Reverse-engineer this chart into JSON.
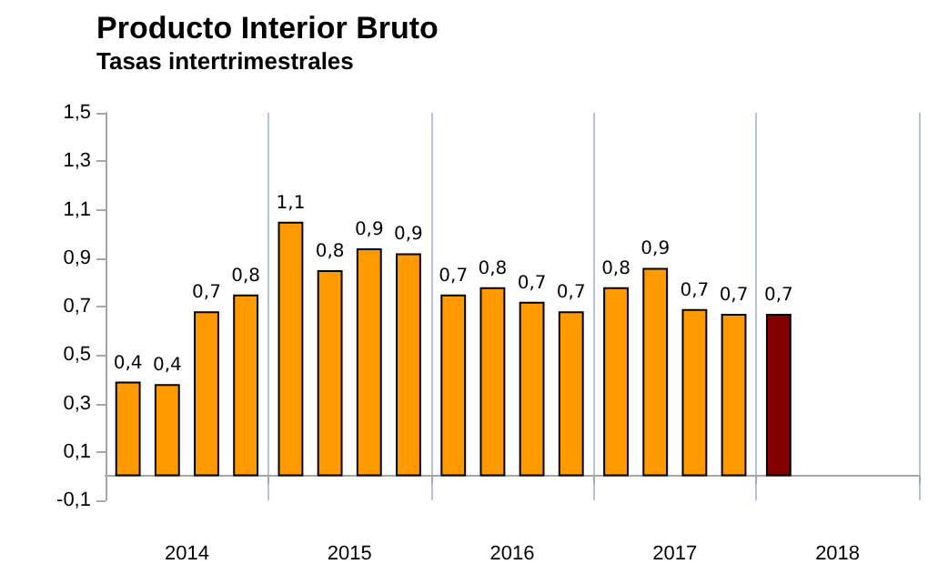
{
  "chart_data": {
    "type": "bar",
    "title": "Producto Interior Bruto",
    "subtitle": "Tasas intertrimestrales",
    "categories": [
      "2014",
      "2015",
      "2016",
      "2017",
      "2018"
    ],
    "series": [
      {
        "colors": [
          "#ff9900",
          "#ff9900",
          "#ff9900",
          "#ff9900",
          "#800000"
        ],
        "values": [
          0.39,
          1.05,
          0.75,
          0.78,
          0.67
        ],
        "value_labels": [
          "0,4",
          "1,1",
          "0,7",
          "0,8",
          "0,7"
        ]
      },
      {
        "color": "#ff9900",
        "values": [
          0.38,
          0.85,
          0.78,
          0.86,
          null
        ],
        "value_labels": [
          "0,4",
          "0,8",
          "0,8",
          "0,9",
          null
        ]
      },
      {
        "color": "#ff9900",
        "values": [
          0.68,
          0.94,
          0.72,
          0.69,
          null
        ],
        "value_labels": [
          "0,7",
          "0,9",
          "0,7",
          "0,7",
          null
        ]
      },
      {
        "color": "#ff9900",
        "values": [
          0.75,
          0.92,
          0.68,
          0.67,
          null
        ],
        "value_labels": [
          "0,8",
          "0,9",
          "0,7",
          "0,7",
          null
        ]
      }
    ],
    "ylim": [
      -0.1,
      1.5
    ],
    "yticks": [
      {
        "value": -0.1,
        "label": "-0,1"
      },
      {
        "value": 0.1,
        "label": "0,1"
      },
      {
        "value": 0.3,
        "label": "0,3"
      },
      {
        "value": 0.5,
        "label": "0,5"
      },
      {
        "value": 0.7,
        "label": "0,7"
      },
      {
        "value": 0.9,
        "label": "0,9"
      },
      {
        "value": 1.1,
        "label": "1,1"
      },
      {
        "value": 1.3,
        "label": "1,3"
      },
      {
        "value": 1.5,
        "label": "1,5"
      }
    ],
    "grid": "x"
  }
}
